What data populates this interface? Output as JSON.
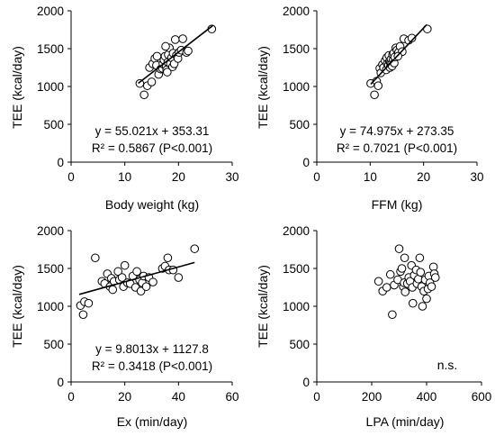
{
  "chart_data": [
    {
      "type": "scatter",
      "xlabel": "Body weight (kg)",
      "ylabel": "TEE (kcal/day)",
      "xlim": [
        0,
        30
      ],
      "ylim": [
        0,
        2000
      ],
      "xticks": [
        0,
        10,
        20,
        30
      ],
      "yticks": [
        0,
        500,
        1000,
        1500,
        2000
      ],
      "annotations": [
        "y = 55.021x + 353.31",
        "R² = 0.5867 (P<0.001)"
      ],
      "fit": {
        "slope": 55.021,
        "intercept": 353.31,
        "x_range": [
          12.5,
          26.4
        ]
      },
      "points": [
        [
          12.8,
          1040
        ],
        [
          13.6,
          890
        ],
        [
          14.2,
          1010
        ],
        [
          14.6,
          1250
        ],
        [
          15.2,
          1300
        ],
        [
          15.6,
          1370
        ],
        [
          15.9,
          1280
        ],
        [
          16.3,
          1160
        ],
        [
          16.7,
          1230
        ],
        [
          17.0,
          1240
        ],
        [
          17.1,
          1300
        ],
        [
          17.3,
          1350
        ],
        [
          17.5,
          1400
        ],
        [
          17.7,
          1260
        ],
        [
          17.8,
          1220
        ],
        [
          17.9,
          1190
        ],
        [
          18.0,
          1320
        ],
        [
          18.1,
          1420
        ],
        [
          18.3,
          1510
        ],
        [
          18.5,
          1300
        ],
        [
          18.7,
          1380
        ],
        [
          18.9,
          1260
        ],
        [
          19.0,
          1440
        ],
        [
          19.2,
          1300
        ],
        [
          19.4,
          1620
        ],
        [
          19.6,
          1410
        ],
        [
          19.9,
          1370
        ],
        [
          20.1,
          1450
        ],
        [
          20.5,
          1480
        ],
        [
          20.8,
          1630
        ],
        [
          21.5,
          1450
        ],
        [
          21.8,
          1470
        ],
        [
          15.0,
          1060
        ],
        [
          16.0,
          1400
        ],
        [
          17.6,
          1530
        ],
        [
          26.2,
          1760
        ]
      ]
    },
    {
      "type": "scatter",
      "xlabel": "FFM (kg)",
      "ylabel": "TEE (kcal/day)",
      "xlim": [
        0,
        30
      ],
      "ylim": [
        0,
        2000
      ],
      "xticks": [
        0,
        10,
        20,
        30
      ],
      "yticks": [
        0,
        500,
        1000,
        1500,
        2000
      ],
      "annotations": [
        "y = 74.975x + 273.35",
        "R² = 0.7021 (P<0.001)"
      ],
      "fit": {
        "slope": 74.975,
        "intercept": 273.35,
        "x_range": [
          10.1,
          20.6
        ]
      },
      "points": [
        [
          10.1,
          1040
        ],
        [
          10.8,
          890
        ],
        [
          11.2,
          1070
        ],
        [
          11.5,
          1010
        ],
        [
          11.8,
          1240
        ],
        [
          12.0,
          1180
        ],
        [
          12.3,
          1290
        ],
        [
          12.5,
          1250
        ],
        [
          12.8,
          1340
        ],
        [
          13.0,
          1220
        ],
        [
          13.1,
          1380
        ],
        [
          13.2,
          1300
        ],
        [
          13.4,
          1280
        ],
        [
          13.5,
          1410
        ],
        [
          13.6,
          1330
        ],
        [
          13.7,
          1250
        ],
        [
          13.8,
          1320
        ],
        [
          13.9,
          1360
        ],
        [
          14.0,
          1300
        ],
        [
          14.1,
          1270
        ],
        [
          14.2,
          1420
        ],
        [
          14.3,
          1350
        ],
        [
          14.4,
          1440
        ],
        [
          14.5,
          1310
        ],
        [
          14.6,
          1390
        ],
        [
          14.8,
          1510
        ],
        [
          15.0,
          1480
        ],
        [
          15.3,
          1450
        ],
        [
          15.6,
          1530
        ],
        [
          16.0,
          1460
        ],
        [
          16.3,
          1630
        ],
        [
          17.2,
          1610
        ],
        [
          17.8,
          1640
        ],
        [
          15.2,
          1400
        ],
        [
          20.7,
          1760
        ]
      ]
    },
    {
      "type": "scatter",
      "xlabel": "Ex (min/day)",
      "ylabel": "TEE (kcal/day)",
      "xlim": [
        0,
        60
      ],
      "ylim": [
        0,
        2000
      ],
      "xticks": [
        0,
        20,
        40,
        60
      ],
      "yticks": [
        0,
        500,
        1000,
        1500,
        2000
      ],
      "annotations": [
        "y = 9.8013x + 1127.8",
        "R² = 0.3418 (P<0.001)"
      ],
      "fit": {
        "slope": 9.8013,
        "intercept": 1127.8,
        "x_range": [
          3,
          46
        ]
      },
      "points": [
        [
          3.5,
          1010
        ],
        [
          4.5,
          890
        ],
        [
          5.0,
          1060
        ],
        [
          6.5,
          1040
        ],
        [
          9.0,
          1640
        ],
        [
          11.5,
          1330
        ],
        [
          12.5,
          1300
        ],
        [
          13.5,
          1430
        ],
        [
          14.5,
          1260
        ],
        [
          15.0,
          1370
        ],
        [
          15.5,
          1220
        ],
        [
          16.0,
          1330
        ],
        [
          17.5,
          1460
        ],
        [
          18.0,
          1350
        ],
        [
          19.0,
          1380
        ],
        [
          19.5,
          1260
        ],
        [
          20.0,
          1540
        ],
        [
          21.0,
          1310
        ],
        [
          22.0,
          1300
        ],
        [
          23.0,
          1400
        ],
        [
          24.0,
          1250
        ],
        [
          24.5,
          1460
        ],
        [
          25.5,
          1350
        ],
        [
          26.0,
          1200
        ],
        [
          26.5,
          1310
        ],
        [
          27.0,
          1400
        ],
        [
          28.0,
          1260
        ],
        [
          29.0,
          1380
        ],
        [
          30.5,
          1320
        ],
        [
          34.0,
          1500
        ],
        [
          35.0,
          1530
        ],
        [
          36.0,
          1640
        ],
        [
          36.5,
          1480
        ],
        [
          38.0,
          1480
        ],
        [
          40.0,
          1380
        ],
        [
          46.0,
          1760
        ]
      ]
    },
    {
      "type": "scatter",
      "xlabel": "LPA (min/day)",
      "ylabel": "TEE (kcal/day)",
      "xlim": [
        0,
        600
      ],
      "ylim": [
        0,
        2000
      ],
      "xticks": [
        0,
        200,
        400,
        600
      ],
      "yticks": [
        0,
        500,
        1000,
        1500,
        2000
      ],
      "annotations": [
        "n.s."
      ],
      "fit": null,
      "points": [
        [
          225,
          1330
        ],
        [
          240,
          1200
        ],
        [
          255,
          1250
        ],
        [
          268,
          1420
        ],
        [
          275,
          890
        ],
        [
          282,
          1280
        ],
        [
          295,
          1350
        ],
        [
          300,
          1760
        ],
        [
          305,
          1460
        ],
        [
          310,
          1500
        ],
        [
          315,
          1260
        ],
        [
          318,
          1310
        ],
        [
          320,
          1640
        ],
        [
          322,
          1190
        ],
        [
          330,
          1300
        ],
        [
          335,
          1380
        ],
        [
          340,
          1330
        ],
        [
          345,
          1540
        ],
        [
          348,
          1250
        ],
        [
          350,
          1040
        ],
        [
          355,
          1410
        ],
        [
          362,
          1480
        ],
        [
          365,
          1300
        ],
        [
          370,
          1360
        ],
        [
          375,
          1640
        ],
        [
          378,
          1450
        ],
        [
          382,
          1260
        ],
        [
          385,
          1000
        ],
        [
          390,
          1200
        ],
        [
          395,
          1350
        ],
        [
          400,
          1100
        ],
        [
          405,
          1230
        ],
        [
          408,
          1400
        ],
        [
          412,
          1310
        ],
        [
          418,
          1260
        ],
        [
          425,
          1520
        ],
        [
          428,
          1430
        ],
        [
          432,
          1380
        ]
      ]
    }
  ]
}
